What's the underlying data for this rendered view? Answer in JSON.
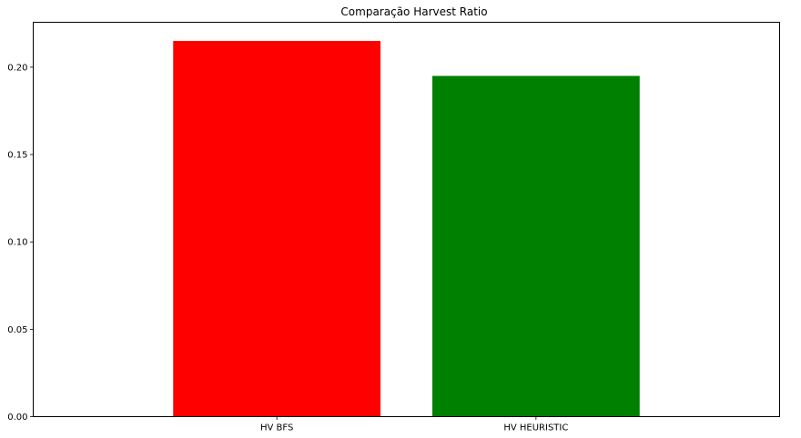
{
  "chart_data": {
    "type": "bar",
    "title": "Comparação Harvest Ratio",
    "xlabel": "",
    "ylabel": "",
    "categories": [
      "HV BFS",
      "HV HEURISTIC"
    ],
    "values": [
      0.215,
      0.195
    ],
    "colors": [
      "#ff0000",
      "#008000"
    ],
    "ylim": [
      0,
      0.2257
    ],
    "yticks": [
      "0.00",
      "0.05",
      "0.10",
      "0.15",
      "0.20"
    ],
    "grid": false,
    "legend": "none"
  }
}
